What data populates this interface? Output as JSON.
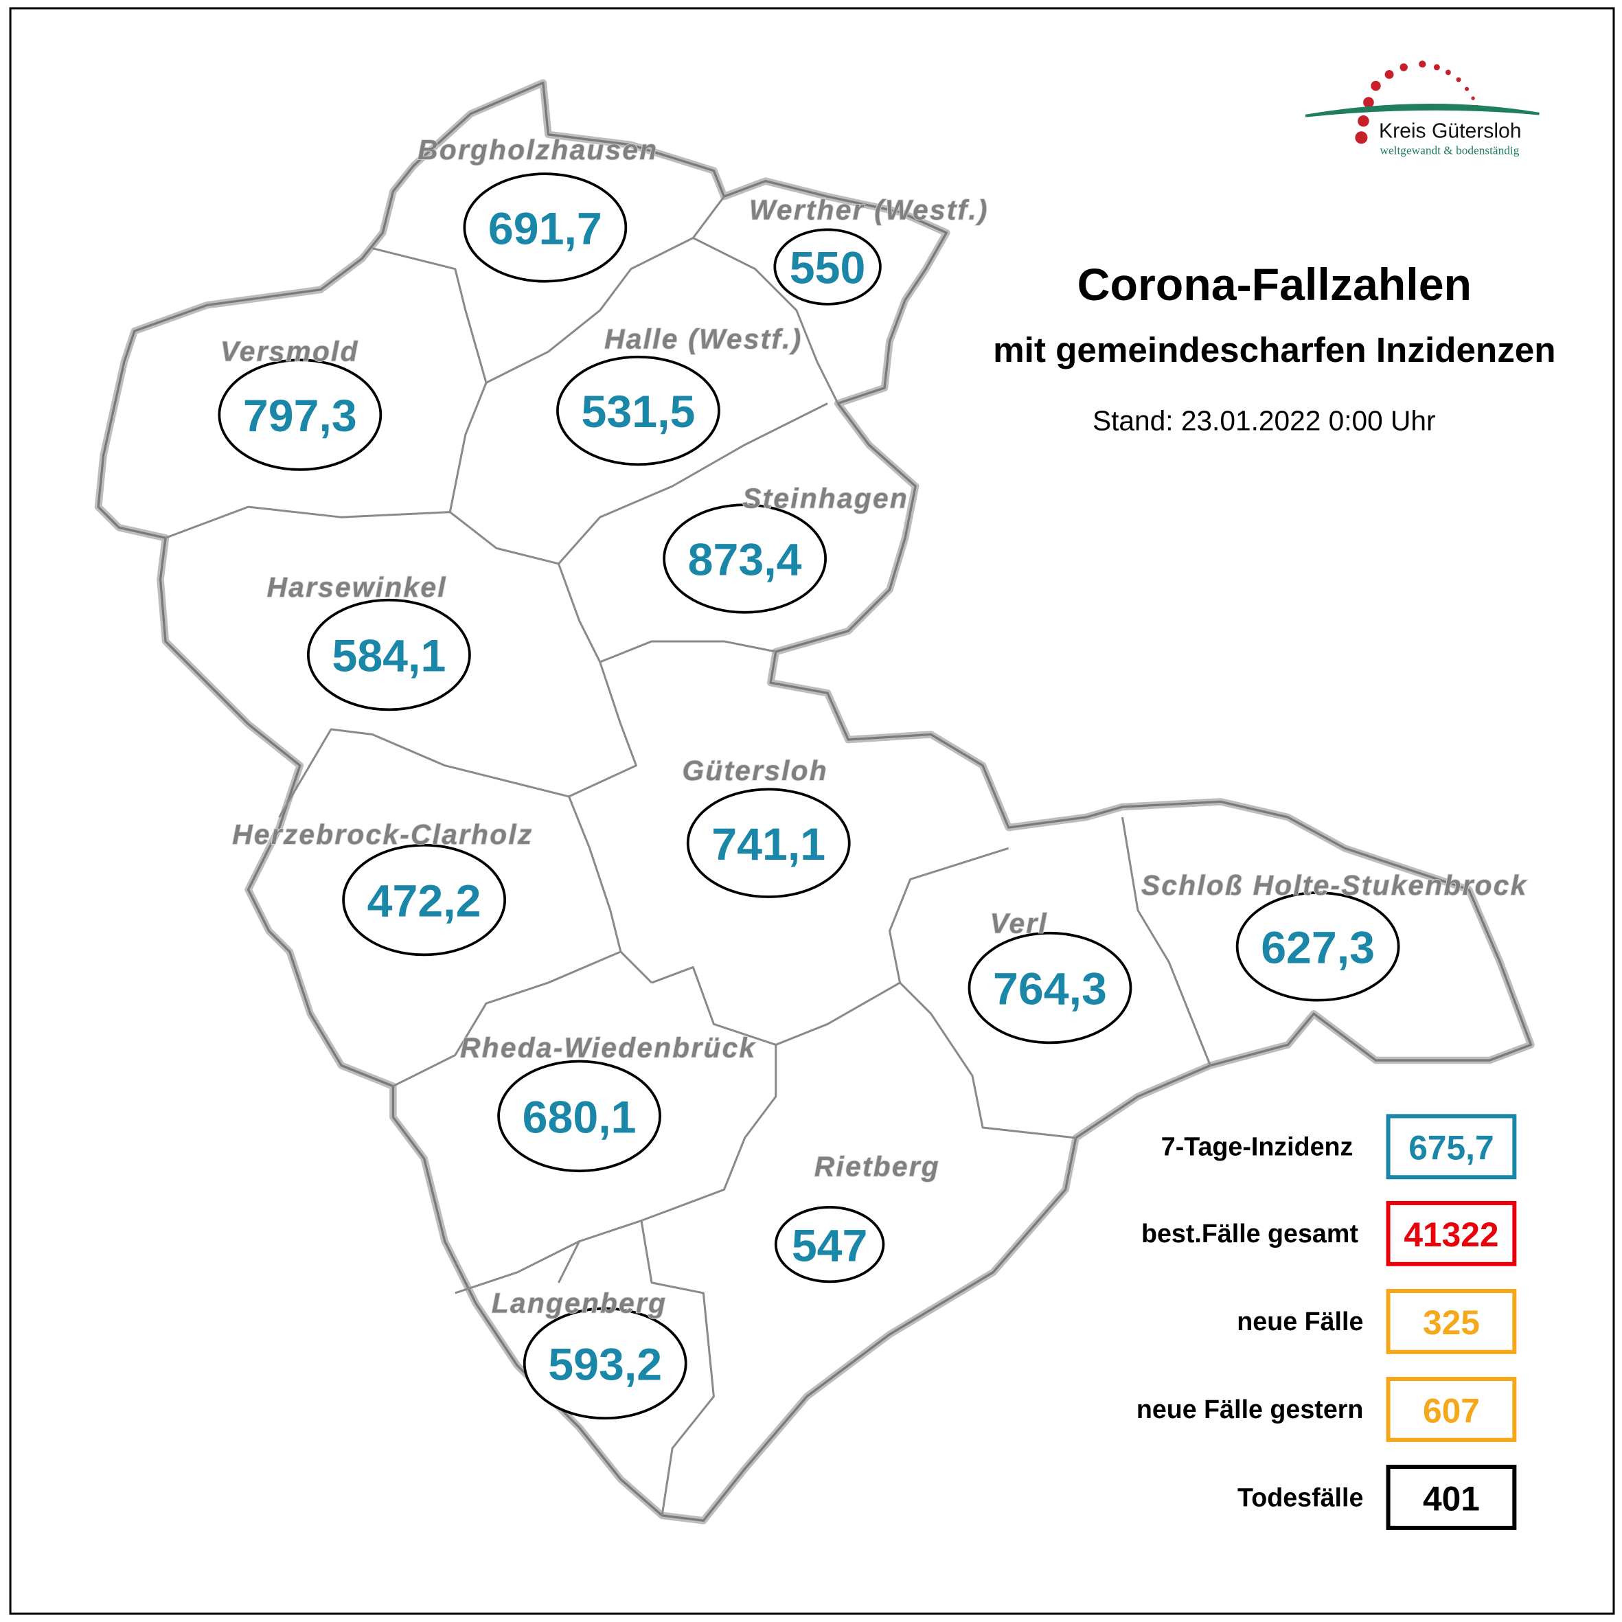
{
  "title": "Corona-Fallzahlen",
  "subtitle": "mit gemeindescharfen Inzidenzen",
  "stand": "Stand: 23.01.2022 0:00 Uhr",
  "logo": {
    "name": "Kreis Gütersloh",
    "tagline": "weltgewandt & bodenständig",
    "colors": {
      "dots": "#c8202a",
      "arc": "#1f7f5c"
    }
  },
  "colors": {
    "incidence": "#1a86a8",
    "total": "#e8000b",
    "new": "#f5a81b",
    "deaths": "#000000",
    "label": "#808080"
  },
  "municipalities": [
    {
      "name": "Borgholzhausen",
      "incidence": "691,7"
    },
    {
      "name": "Werther (Westf.)",
      "incidence": "550"
    },
    {
      "name": "Versmold",
      "incidence": "797,3"
    },
    {
      "name": "Halle (Westf.)",
      "incidence": "531,5"
    },
    {
      "name": "Steinhagen",
      "incidence": "873,4"
    },
    {
      "name": "Harsewinkel",
      "incidence": "584,1"
    },
    {
      "name": "Gütersloh",
      "incidence": "741,1"
    },
    {
      "name": "Herzebrock-Clarholz",
      "incidence": "472,2"
    },
    {
      "name": "Verl",
      "incidence": "764,3"
    },
    {
      "name": "Schloß Holte-Stukenbrock",
      "incidence": "627,3"
    },
    {
      "name": "Rheda-Wiedenbrück",
      "incidence": "680,1"
    },
    {
      "name": "Rietberg",
      "incidence": "547"
    },
    {
      "name": "Langenberg",
      "incidence": "593,2"
    }
  ],
  "legend": [
    {
      "label": "7-Tage-Inzidenz",
      "value": "675,7",
      "color": "#1a86a8"
    },
    {
      "label": "best.Fälle gesamt",
      "value": "41322",
      "color": "#e8000b"
    },
    {
      "label": "neue Fälle",
      "value": "325",
      "color": "#f5a81b"
    },
    {
      "label": "neue Fälle gestern",
      "value": "607",
      "color": "#f5a81b"
    },
    {
      "label": "Todesfälle",
      "value": "401",
      "color": "#000000"
    }
  ]
}
